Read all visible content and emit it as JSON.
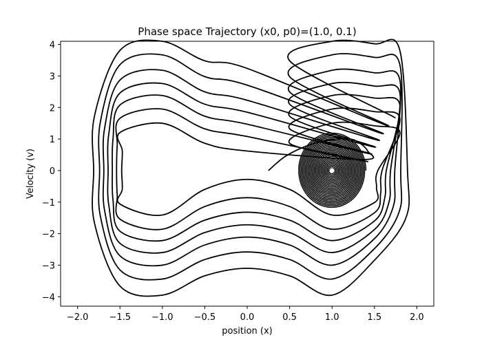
{
  "chart_data": {
    "type": "line",
    "title": "Phase space Trajectory (x0, p0)=(1.0, 0.1)",
    "xlabel": "position (x)",
    "ylabel": "Velocity (v)",
    "xlim": [
      -2.2,
      2.2
    ],
    "ylim": [
      -4.3,
      4.1
    ],
    "x_ticks": [
      -2.0,
      -1.5,
      -1.0,
      -0.5,
      0.0,
      0.5,
      1.0,
      1.5,
      2.0
    ],
    "x_tick_labels": [
      "−2.0",
      "−1.5",
      "−1.0",
      "−0.5",
      "0.0",
      "0.5",
      "1.0",
      "1.5",
      "2.0"
    ],
    "y_ticks": [
      -4,
      -3,
      -2,
      -1,
      0,
      1,
      2,
      3,
      4
    ],
    "y_tick_labels": [
      "−4",
      "−3",
      "−2",
      "−1",
      "0",
      "1",
      "2",
      "3",
      "4"
    ],
    "grid": false,
    "line_color": "#000000",
    "marker_color": "#ffffff",
    "series": [
      {
        "curve_type": "inner-spiral-around-x1",
        "center": [
          1.0,
          0.0
        ],
        "x_extent_range": [
          0.0,
          0.4
        ],
        "y_extent_range": [
          0.0,
          1.2
        ],
        "turns": 26
      },
      {
        "curve_type": "outer-orbit-sequence",
        "x_extents": [
          1.48,
          1.54,
          1.59,
          1.64,
          1.69,
          1.74,
          1.81,
          1.89
        ],
        "v_top_at_x0": [
          0.62,
          1.08,
          1.47,
          1.85,
          2.23,
          2.71,
          3.24,
          3.76
        ],
        "v_bottom_at_x0": [
          -0.28,
          -0.86,
          -1.32,
          -1.72,
          -2.11,
          -2.58,
          -3.1,
          -3.62
        ],
        "v_max_peaks": [
          1.5,
          1.95,
          2.38,
          2.76,
          3.18,
          3.67,
          4.1
        ],
        "v_min_peaks": [
          -1.41,
          -1.86,
          -2.22,
          -2.6,
          -3.0,
          -3.44,
          -3.95
        ],
        "start": [
          0.25,
          0.0
        ],
        "end": [
          -1.83,
          -2.35
        ]
      }
    ],
    "marker": [
      1.0,
      0.0
    ]
  }
}
